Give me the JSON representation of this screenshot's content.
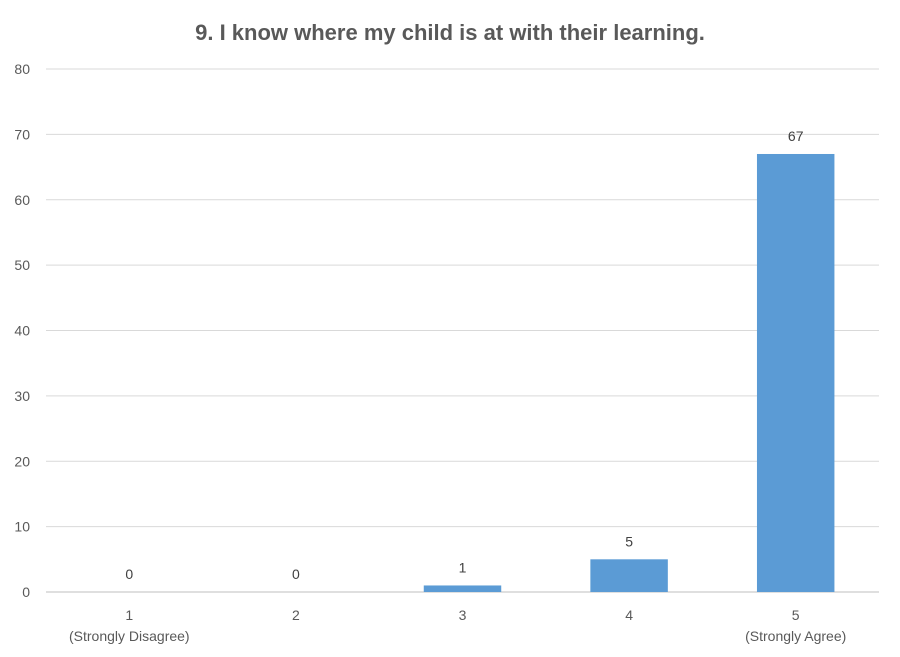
{
  "chart_data": {
    "type": "bar",
    "title": "9. I know where my child is at with their learning.",
    "categories": [
      "1",
      "2",
      "3",
      "4",
      "5"
    ],
    "category_sublabels": [
      "(Strongly Disagree)",
      "",
      "",
      "",
      "(Strongly Agree)"
    ],
    "values": [
      0,
      0,
      1,
      5,
      67
    ],
    "data_labels": [
      "0",
      "0",
      "1",
      "5",
      "67"
    ],
    "xlabel": "",
    "ylabel": "",
    "ylim": [
      0,
      80
    ],
    "yticks": [
      0,
      10,
      20,
      30,
      40,
      50,
      60,
      70,
      80
    ],
    "grid": true,
    "legend": "none",
    "bar_color": "#5b9bd5"
  }
}
